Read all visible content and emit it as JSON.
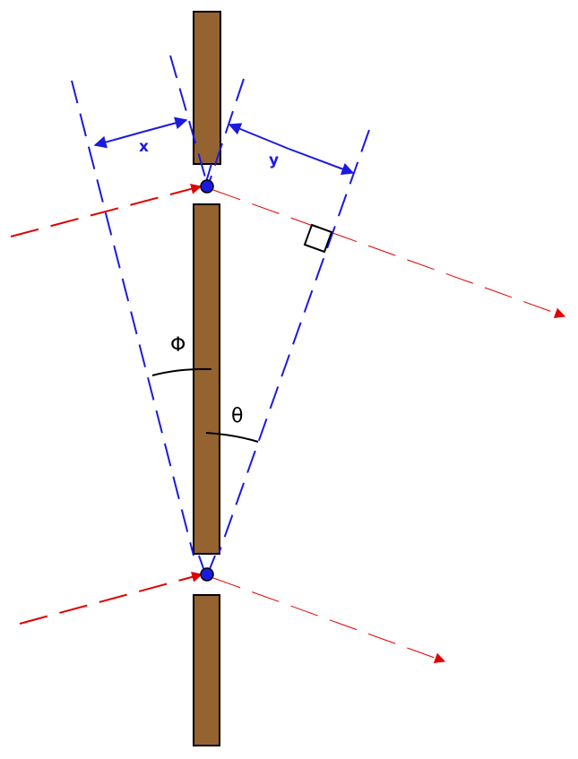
{
  "labels": {
    "x": "x",
    "y": "y",
    "phi": "Φ",
    "theta": "θ"
  },
  "colors": {
    "wall": "#946330",
    "wall_stroke": "#000000",
    "construction_line": "#1a1ae0",
    "ray": "#e00000",
    "slit_dot": "#1a1ae0",
    "angle_arc": "#000000"
  }
}
